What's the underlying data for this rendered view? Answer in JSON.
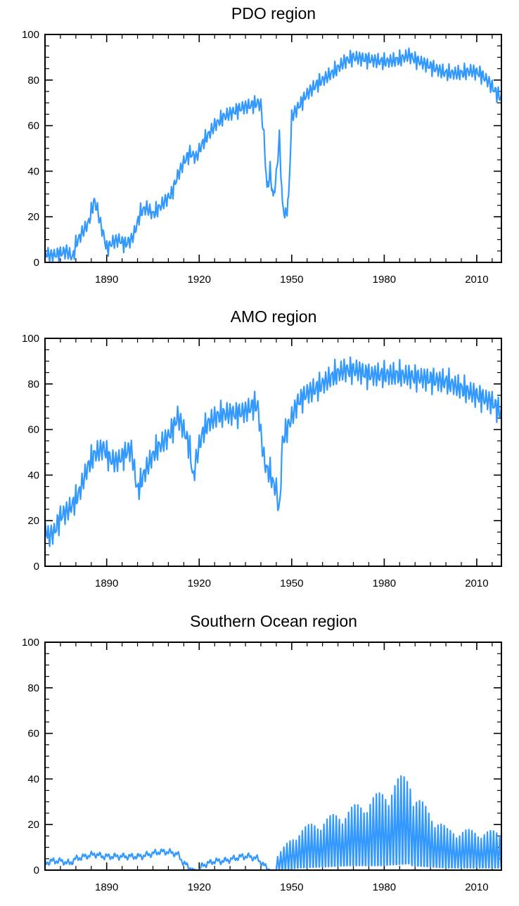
{
  "chart_data": [
    {
      "type": "line",
      "title": "PDO region",
      "xlabel": "",
      "ylabel": "",
      "xlim": [
        1870,
        2018
      ],
      "ylim": [
        0,
        100
      ],
      "x_ticks": [
        "1890",
        "1920",
        "1950",
        "1980",
        "2010"
      ],
      "y_ticks": [
        "0",
        "20",
        "40",
        "60",
        "80",
        "100"
      ],
      "line_color": "#3399ff",
      "seasonal_amplitude": 2.5,
      "series": [
        {
          "name": "PDO region",
          "points": [
            [
              1870,
              4
            ],
            [
              1872,
              3
            ],
            [
              1875,
              4
            ],
            [
              1877,
              5
            ],
            [
              1879,
              2
            ],
            [
              1880,
              8
            ],
            [
              1882,
              13
            ],
            [
              1884,
              17
            ],
            [
              1885,
              22
            ],
            [
              1886,
              27
            ],
            [
              1887,
              23
            ],
            [
              1888,
              17
            ],
            [
              1889,
              12
            ],
            [
              1890,
              6
            ],
            [
              1892,
              9
            ],
            [
              1894,
              10
            ],
            [
              1896,
              8
            ],
            [
              1898,
              10
            ],
            [
              1899,
              13
            ],
            [
              1901,
              22
            ],
            [
              1903,
              24
            ],
            [
              1905,
              21
            ],
            [
              1907,
              24
            ],
            [
              1909,
              27
            ],
            [
              1911,
              30
            ],
            [
              1913,
              38
            ],
            [
              1915,
              44
            ],
            [
              1917,
              48
            ],
            [
              1919,
              46
            ],
            [
              1921,
              52
            ],
            [
              1923,
              56
            ],
            [
              1925,
              60
            ],
            [
              1928,
              64
            ],
            [
              1931,
              66
            ],
            [
              1934,
              68
            ],
            [
              1937,
              69
            ],
            [
              1939,
              70
            ],
            [
              1940,
              69
            ],
            [
              1941,
              55
            ],
            [
              1942,
              32
            ],
            [
              1943,
              40
            ],
            [
              1944,
              28
            ],
            [
              1945,
              38
            ],
            [
              1946,
              55
            ],
            [
              1947,
              25
            ],
            [
              1948,
              20
            ],
            [
              1949,
              28
            ],
            [
              1950,
              64
            ],
            [
              1952,
              68
            ],
            [
              1955,
              74
            ],
            [
              1958,
              78
            ],
            [
              1961,
              81
            ],
            [
              1964,
              84
            ],
            [
              1967,
              88
            ],
            [
              1970,
              90
            ],
            [
              1975,
              89
            ],
            [
              1980,
              88
            ],
            [
              1985,
              89
            ],
            [
              1988,
              91
            ],
            [
              1990,
              89
            ],
            [
              1995,
              86
            ],
            [
              2000,
              83
            ],
            [
              2005,
              83
            ],
            [
              2008,
              84
            ],
            [
              2011,
              83
            ],
            [
              2014,
              79
            ],
            [
              2016,
              75
            ],
            [
              2018,
              72
            ]
          ]
        }
      ]
    },
    {
      "type": "line",
      "title": "AMO region",
      "xlabel": "",
      "ylabel": "",
      "xlim": [
        1870,
        2018
      ],
      "ylim": [
        0,
        100
      ],
      "x_ticks": [
        "1890",
        "1920",
        "1950",
        "1980",
        "2010"
      ],
      "y_ticks": [
        "0",
        "20",
        "40",
        "60",
        "80",
        "100"
      ],
      "line_color": "#3399ff",
      "seasonal_amplitude": 4,
      "series": [
        {
          "name": "AMO region",
          "points": [
            [
              1870,
              18
            ],
            [
              1871,
              13
            ],
            [
              1873,
              15
            ],
            [
              1875,
              22
            ],
            [
              1877,
              24
            ],
            [
              1879,
              27
            ],
            [
              1881,
              32
            ],
            [
              1882,
              36
            ],
            [
              1884,
              44
            ],
            [
              1886,
              49
            ],
            [
              1889,
              52
            ],
            [
              1891,
              47
            ],
            [
              1893,
              46
            ],
            [
              1895,
              48
            ],
            [
              1897,
              51
            ],
            [
              1898,
              51
            ],
            [
              1899,
              42
            ],
            [
              1900,
              33
            ],
            [
              1902,
              40
            ],
            [
              1904,
              46
            ],
            [
              1906,
              51
            ],
            [
              1908,
              54
            ],
            [
              1910,
              57
            ],
            [
              1912,
              62
            ],
            [
              1913,
              66
            ],
            [
              1915,
              60
            ],
            [
              1917,
              52
            ],
            [
              1918,
              38
            ],
            [
              1919,
              47
            ],
            [
              1921,
              58
            ],
            [
              1923,
              63
            ],
            [
              1926,
              66
            ],
            [
              1929,
              67
            ],
            [
              1932,
              67
            ],
            [
              1935,
              68
            ],
            [
              1938,
              71
            ],
            [
              1939,
              70
            ],
            [
              1940,
              58
            ],
            [
              1941,
              47
            ],
            [
              1942,
              42
            ],
            [
              1943,
              41
            ],
            [
              1944,
              36
            ],
            [
              1945,
              34
            ],
            [
              1946,
              23
            ],
            [
              1947,
              55
            ],
            [
              1949,
              62
            ],
            [
              1952,
              72
            ],
            [
              1955,
              76
            ],
            [
              1958,
              78
            ],
            [
              1961,
              81
            ],
            [
              1964,
              84
            ],
            [
              1967,
              86
            ],
            [
              1971,
              86
            ],
            [
              1975,
              84
            ],
            [
              1980,
              84
            ],
            [
              1985,
              84
            ],
            [
              1990,
              83
            ],
            [
              1995,
              82
            ],
            [
              2000,
              81
            ],
            [
              2005,
              78
            ],
            [
              2010,
              75
            ],
            [
              2015,
              72
            ],
            [
              2018,
              67
            ]
          ]
        }
      ]
    },
    {
      "type": "line",
      "title": "Southern Ocean region",
      "xlabel": "",
      "ylabel": "",
      "xlim": [
        1870,
        2018
      ],
      "ylim": [
        0,
        100
      ],
      "x_ticks": [
        "1890",
        "1920",
        "1950",
        "1980",
        "2010"
      ],
      "y_ticks": [
        "0",
        "20",
        "40",
        "60",
        "80",
        "100"
      ],
      "line_color": "#3399ff",
      "series": [
        {
          "name": "Southern Ocean region",
          "points": [
            [
              1870,
              3
            ],
            [
              1872,
              4
            ],
            [
              1875,
              4
            ],
            [
              1878,
              3
            ],
            [
              1880,
              5
            ],
            [
              1883,
              6
            ],
            [
              1886,
              7
            ],
            [
              1889,
              6
            ],
            [
              1892,
              6
            ],
            [
              1895,
              6
            ],
            [
              1898,
              6
            ],
            [
              1901,
              6
            ],
            [
              1904,
              7
            ],
            [
              1907,
              8
            ],
            [
              1910,
              8
            ],
            [
              1913,
              7
            ],
            [
              1915,
              3
            ],
            [
              1917,
              1
            ],
            [
              1919,
              0
            ],
            [
              1920,
              0
            ],
            [
              1921,
              2
            ],
            [
              1923,
              3
            ],
            [
              1925,
              4
            ],
            [
              1928,
              4
            ],
            [
              1931,
              5
            ],
            [
              1934,
              6
            ],
            [
              1936,
              6
            ],
            [
              1939,
              5
            ],
            [
              1941,
              2
            ],
            [
              1943,
              0
            ],
            [
              1944,
              0
            ]
          ]
        }
      ],
      "oscillation_segments": [
        {
          "start": 1945,
          "end": 1952,
          "low": [
            0,
            1
          ],
          "high": [
            6,
            16
          ]
        },
        {
          "start": 1952,
          "end": 1968,
          "low": [
            1,
            2
          ],
          "high": [
            16,
            24
          ]
        },
        {
          "start": 1968,
          "end": 1978,
          "low": [
            2,
            2
          ],
          "high": [
            24,
            30
          ]
        },
        {
          "start": 1978,
          "end": 1989,
          "low": [
            2,
            3
          ],
          "high": [
            30,
            40
          ]
        },
        {
          "start": 1989,
          "end": 2000,
          "low": [
            2,
            1
          ],
          "high": [
            30,
            16
          ]
        },
        {
          "start": 2000,
          "end": 2018,
          "low": [
            1,
            1
          ],
          "high": [
            16,
            15
          ]
        }
      ]
    }
  ]
}
